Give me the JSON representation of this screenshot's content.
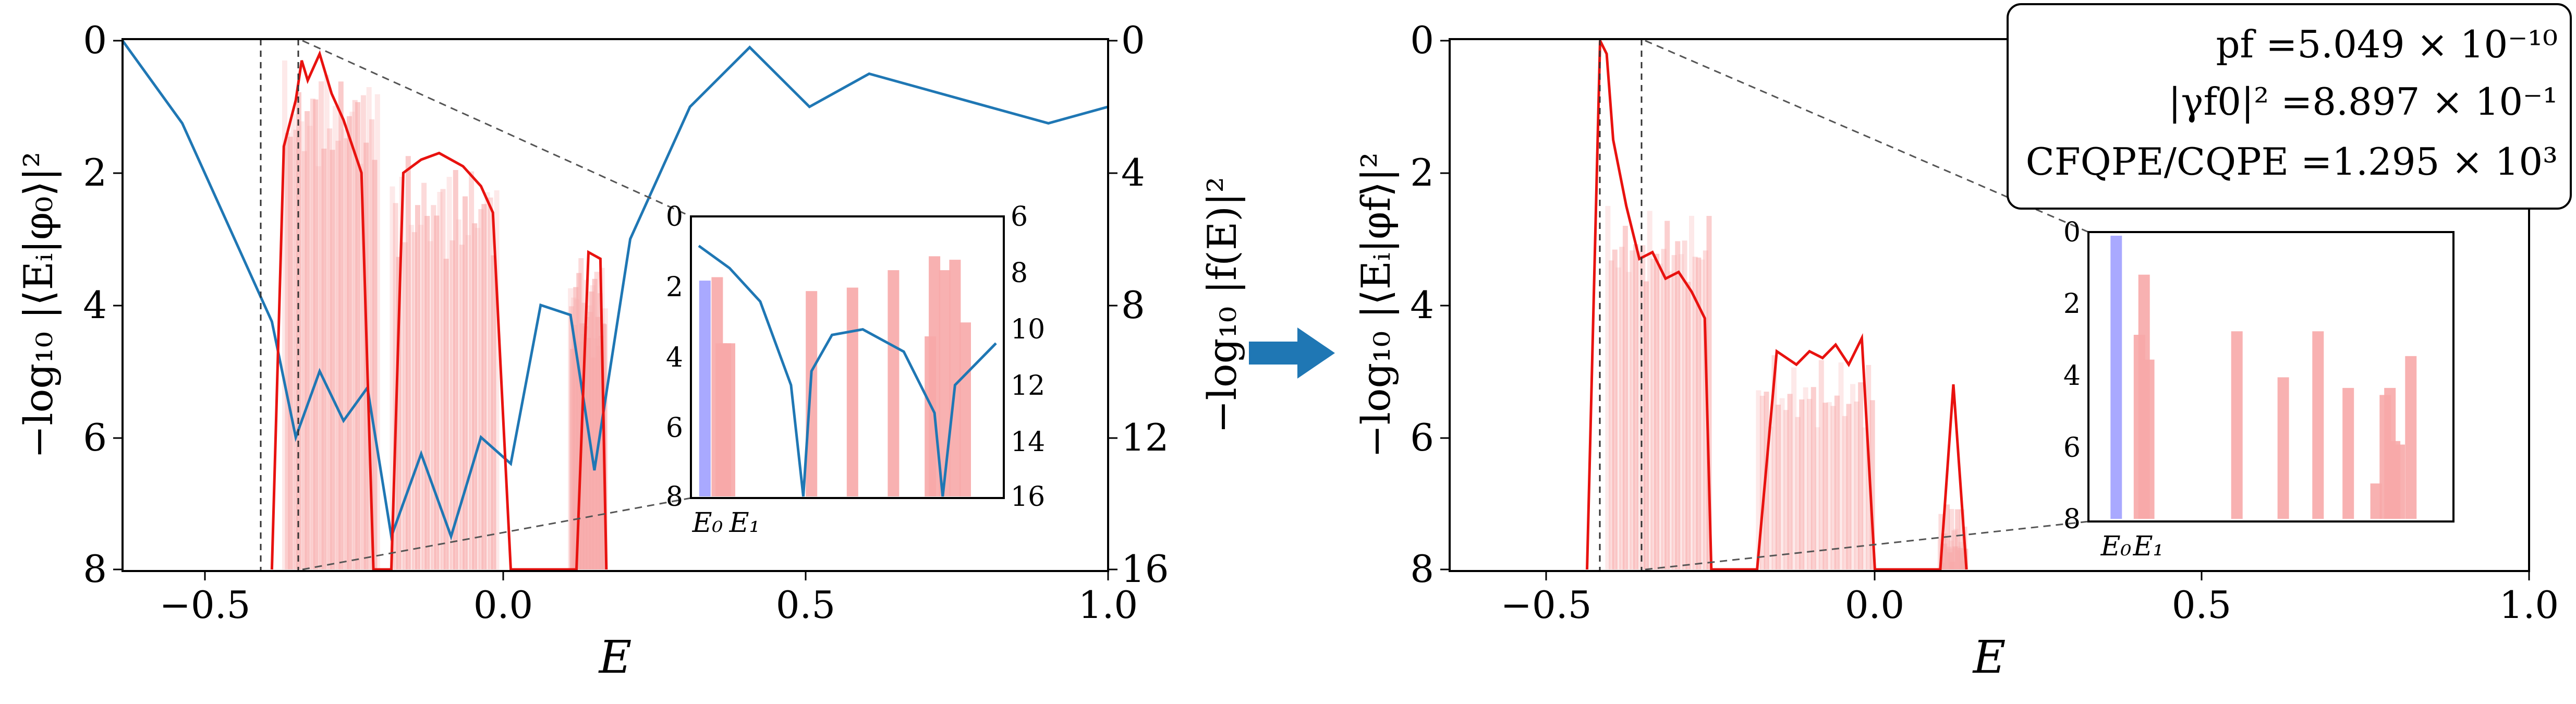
{
  "figure": {
    "arrow_color": "#1f77b4",
    "left_panel": {
      "xlabel": "E",
      "ylabel_left": "−log₁₀ |⟨Eᵢ|φ₀⟩|²",
      "ylabel_right": "−log₁₀ |f(E)|²",
      "xticks": [
        "−0.5",
        "0.0",
        "0.5",
        "1.0"
      ],
      "yticks_left": [
        "0",
        "2",
        "4",
        "6",
        "8"
      ],
      "yticks_right": [
        "0",
        "4",
        "8",
        "12",
        "16"
      ],
      "inset": {
        "yticks_left": [
          "0",
          "2",
          "4",
          "6",
          "8"
        ],
        "yticks_right": [
          "6",
          "8",
          "10",
          "12",
          "14",
          "16"
        ],
        "xlabels": [
          "E₀",
          "E₁"
        ]
      }
    },
    "right_panel": {
      "xlabel": "E",
      "ylabel": "−log₁₀ |⟨Eᵢ|φf⟩|²",
      "xticks": [
        "−0.5",
        "0.0",
        "0.5",
        "1.0"
      ],
      "yticks": [
        "0",
        "2",
        "4",
        "6",
        "8"
      ],
      "annotation": {
        "line1": "pf =5.049 × 10⁻¹⁰",
        "line2": "|γf0|² =8.897 × 10⁻¹",
        "line3": "CFQPE/CQPE =1.295 × 10³"
      },
      "inset": {
        "yticks": [
          "0",
          "2",
          "4",
          "6",
          "8"
        ],
        "xlabels": [
          "E₀",
          "E₁"
        ]
      }
    }
  },
  "chart_data": [
    {
      "type": "line",
      "panel": "left",
      "xlim": [
        -0.65,
        1.0
      ],
      "ylim": [
        8,
        0
      ],
      "y2lim": [
        16,
        0
      ],
      "colors": {
        "envelope": "#e8120f",
        "filter": "#1f77b4",
        "bars": "#f7a8a8",
        "ground": "#8c8cff"
      },
      "E0": -0.42,
      "E1": -0.36,
      "bands": [
        {
          "x0": -0.38,
          "x1": -0.22,
          "top": 0.3
        },
        {
          "x0": -0.2,
          "x1": -0.02,
          "top": 1.7
        },
        {
          "x0": 0.1,
          "x1": 0.16,
          "top": 3.2
        }
      ],
      "series": [
        {
          "axis": "left",
          "x": [
            -0.4,
            -0.38,
            -0.36,
            -0.35,
            -0.34,
            -0.32,
            -0.3,
            -0.28,
            -0.25,
            -0.23,
            -0.2,
            -0.18,
            -0.15,
            -0.12,
            -0.08,
            -0.05,
            -0.03,
            0.0,
            0.11,
            0.13,
            0.15,
            0.16
          ],
          "y": [
            8.0,
            1.6,
            0.9,
            0.3,
            0.6,
            0.2,
            0.8,
            1.2,
            2.0,
            8.0,
            8.0,
            2.0,
            1.8,
            1.7,
            1.9,
            2.2,
            2.6,
            8.0,
            8.0,
            3.2,
            3.3,
            8.0
          ]
        },
        {
          "axis": "right",
          "x": [
            -0.65,
            -0.55,
            -0.45,
            -0.4,
            -0.36,
            -0.32,
            -0.28,
            -0.24,
            -0.2,
            -0.15,
            -0.1,
            -0.05,
            0.0,
            0.05,
            0.1,
            0.14,
            0.2,
            0.3,
            0.4,
            0.5,
            0.6,
            0.7,
            0.8,
            0.9,
            1.0
          ],
          "y": [
            0.0,
            2.5,
            6.5,
            8.5,
            12.0,
            10.0,
            11.5,
            10.5,
            15.0,
            12.5,
            15.0,
            12.0,
            12.8,
            8.0,
            8.3,
            13.0,
            6.0,
            2.0,
            0.2,
            2.0,
            1.0,
            1.5,
            2.0,
            2.5,
            2.0
          ]
        }
      ],
      "inset": {
        "xlim": [
          -0.45,
          1.0
        ],
        "ylim": [
          8,
          0
        ],
        "y2lim": [
          16,
          6
        ],
        "bars_x": [
          -0.42,
          -0.36,
          -0.34,
          -0.32,
          -0.3,
          0.1,
          0.3,
          0.5,
          0.68,
          0.7,
          0.75,
          0.8,
          0.85
        ],
        "bars_y": [
          1.8,
          1.7,
          3.6,
          3.6,
          3.6,
          2.1,
          2.0,
          1.5,
          3.4,
          1.1,
          1.5,
          1.2,
          3.0
        ]
      }
    },
    {
      "type": "bar",
      "panel": "right",
      "xlim": [
        -0.65,
        1.0
      ],
      "ylim": [
        8,
        0
      ],
      "E0": -0.42,
      "E1": -0.36,
      "series": [
        {
          "x": [
            -0.44,
            -0.42,
            -0.41,
            -0.4,
            -0.38,
            -0.36,
            -0.34,
            -0.32,
            -0.3,
            -0.28,
            -0.26,
            -0.25,
            -0.18,
            -0.15,
            -0.12,
            -0.1,
            -0.08,
            -0.06,
            -0.04,
            -0.02,
            0.0,
            0.1,
            0.12,
            0.14
          ],
          "y": [
            8.0,
            0.0,
            0.2,
            1.5,
            2.5,
            3.3,
            3.2,
            3.6,
            3.5,
            3.8,
            4.2,
            8.0,
            8.0,
            4.7,
            4.9,
            4.7,
            4.8,
            4.6,
            4.9,
            4.5,
            8.0,
            8.0,
            5.2,
            8.0
          ]
        }
      ],
      "inset": {
        "xlim": [
          -0.45,
          1.0
        ],
        "ylim": [
          8,
          0
        ],
        "bars_x": [
          -0.42,
          -0.32,
          -0.3,
          -0.28,
          0.1,
          0.3,
          0.45,
          0.58,
          0.7,
          0.74,
          0.76,
          0.78,
          0.8,
          0.85
        ],
        "bars_y": [
          0.0,
          2.8,
          1.1,
          3.5,
          2.7,
          4.0,
          2.7,
          4.3,
          7.0,
          4.5,
          4.3,
          5.8,
          5.9,
          3.4
        ]
      }
    }
  ]
}
